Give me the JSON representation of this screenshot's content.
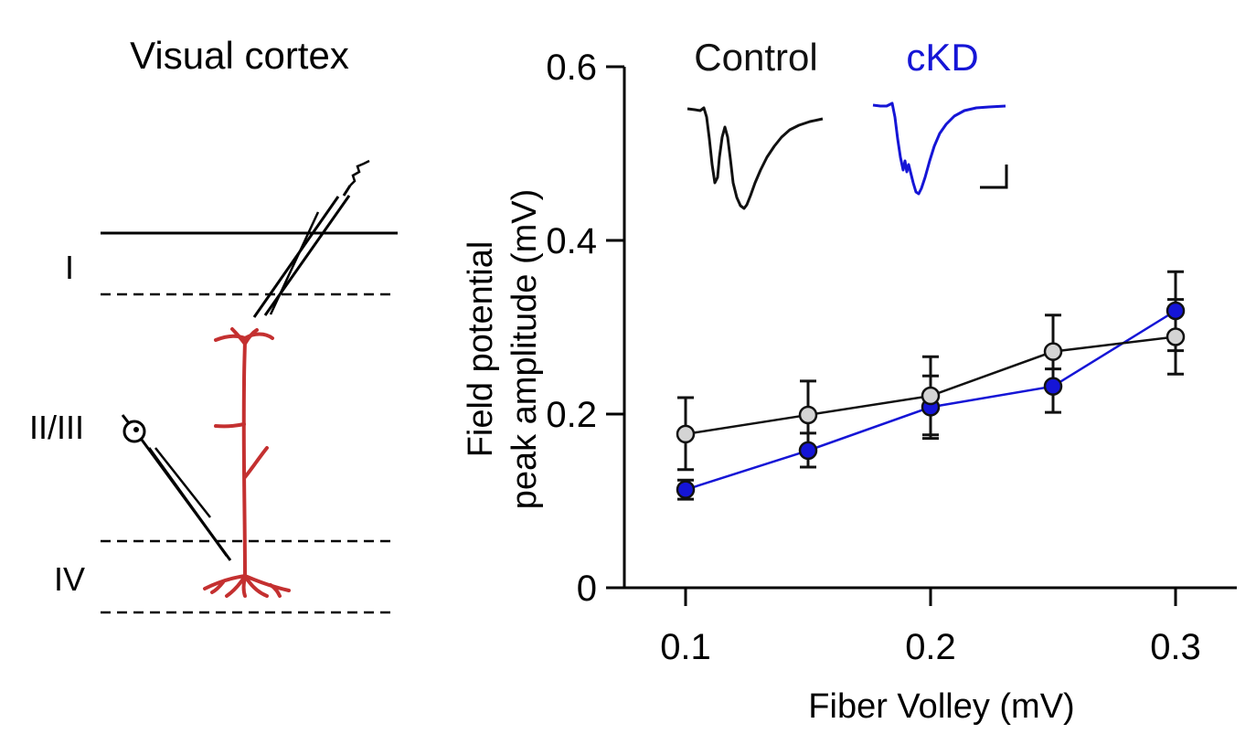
{
  "schematic": {
    "title": "Visual cortex",
    "layer_labels": [
      "I",
      "II/III",
      "IV"
    ]
  },
  "chart_data": {
    "type": "line",
    "xlabel": "Fiber Volley (mV)",
    "ylabel_lines": [
      "Field potential",
      "peak amplitude (mV)"
    ],
    "xlim": [
      0.075,
      0.325
    ],
    "ylim": [
      0,
      0.6
    ],
    "x_ticks": [
      0.1,
      0.2,
      0.3
    ],
    "x_tick_labels": [
      "0.1",
      "0.2",
      "0.3"
    ],
    "y_ticks": [
      0,
      0.2,
      0.4,
      0.6
    ],
    "y_tick_labels": [
      "0",
      "0.2",
      "0.4",
      "0.6"
    ],
    "legend": [
      "Control",
      "cKD"
    ],
    "x": [
      0.1,
      0.15,
      0.2,
      0.25,
      0.3
    ],
    "series": [
      {
        "name": "Control",
        "values": [
          0.177,
          0.199,
          0.221,
          0.272,
          0.289
        ],
        "err_upper": [
          0.219,
          0.238,
          0.266,
          0.314,
          0.364
        ],
        "err_lower": [
          0.136,
          0.16,
          0.176,
          0.23,
          0.246
        ]
      },
      {
        "name": "cKD",
        "values": [
          0.113,
          0.158,
          0.208,
          0.232,
          0.319
        ],
        "err_upper": [
          0.124,
          0.178,
          0.244,
          0.252,
          0.332
        ],
        "err_lower": [
          0.102,
          0.139,
          0.172,
          0.202,
          0.273
        ]
      }
    ]
  },
  "colors": {
    "control_line": "#111111",
    "control_marker": "#d4d4d4",
    "ckd": "#1515d6",
    "neuron": "#c43030",
    "axis": "#000000"
  }
}
